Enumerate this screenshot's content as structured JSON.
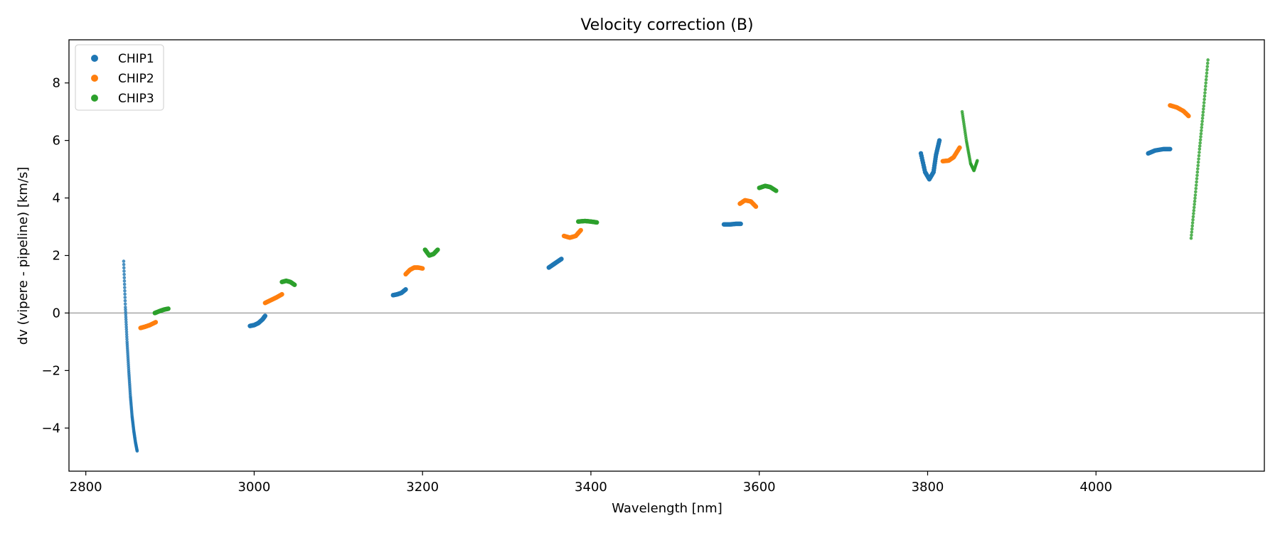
{
  "chart_data": {
    "type": "scatter",
    "title": "Velocity correction (B)",
    "xlabel": "Wavelength [nm]",
    "ylabel": "dv (vipere - pipeline) [km/s]",
    "xlim": [
      2780,
      4200
    ],
    "ylim": [
      -5.5,
      9.5
    ],
    "xticks": [
      2800,
      3000,
      3200,
      3400,
      3600,
      3800,
      4000
    ],
    "yticks": [
      -4,
      -2,
      0,
      2,
      4,
      6,
      8
    ],
    "xtick_labels": [
      "2800",
      "3000",
      "3200",
      "3400",
      "3600",
      "3800",
      "4000"
    ],
    "ytick_labels": [
      "−4",
      "−2",
      "0",
      "2",
      "4",
      "6",
      "8"
    ],
    "hline_y": 0,
    "legend": {
      "position": "top-left",
      "entries": [
        "CHIP1",
        "CHIP2",
        "CHIP3"
      ]
    },
    "series": [
      {
        "name": "CHIP1",
        "color": "#1f77b4",
        "segments": [
          {
            "x": [
              2845,
              2847,
              2849,
              2851,
              2853,
              2855,
              2857,
              2859,
              2861
            ],
            "y": [
              1.8,
              0.2,
              -1.0,
              -2.0,
              -2.9,
              -3.6,
              -4.1,
              -4.5,
              -4.8
            ]
          },
          {
            "x": [
              2995,
              3000,
              3005,
              3010,
              3013
            ],
            "y": [
              -0.45,
              -0.42,
              -0.35,
              -0.22,
              -0.1
            ]
          },
          {
            "x": [
              3165,
              3170,
              3175,
              3180
            ],
            "y": [
              0.62,
              0.65,
              0.7,
              0.82
            ]
          },
          {
            "x": [
              3350,
              3355,
              3360,
              3365
            ],
            "y": [
              1.58,
              1.68,
              1.78,
              1.88
            ]
          },
          {
            "x": [
              3558,
              3565,
              3572,
              3578
            ],
            "y": [
              3.08,
              3.08,
              3.1,
              3.1
            ]
          },
          {
            "x": [
              3792,
              3797,
              3802,
              3807,
              3810,
              3814
            ],
            "y": [
              5.55,
              4.9,
              4.65,
              4.9,
              5.5,
              6.0
            ]
          },
          {
            "x": [
              4062,
              4070,
              4080,
              4088
            ],
            "y": [
              5.55,
              5.65,
              5.7,
              5.7
            ]
          }
        ]
      },
      {
        "name": "CHIP2",
        "color": "#ff7f0e",
        "segments": [
          {
            "x": [
              2865,
              2870,
              2876,
              2883
            ],
            "y": [
              -0.52,
              -0.48,
              -0.42,
              -0.32
            ]
          },
          {
            "x": [
              3013,
              3020,
              3027,
              3033
            ],
            "y": [
              0.35,
              0.45,
              0.55,
              0.65
            ]
          },
          {
            "x": [
              3180,
              3185,
              3190,
              3195,
              3200
            ],
            "y": [
              1.35,
              1.5,
              1.58,
              1.58,
              1.55
            ]
          },
          {
            "x": [
              3368,
              3375,
              3382,
              3388
            ],
            "y": [
              2.68,
              2.62,
              2.68,
              2.88
            ]
          },
          {
            "x": [
              3577,
              3583,
              3590,
              3596
            ],
            "y": [
              3.8,
              3.92,
              3.88,
              3.7
            ]
          },
          {
            "x": [
              3818,
              3825,
              3831,
              3838
            ],
            "y": [
              5.28,
              5.3,
              5.42,
              5.75
            ]
          },
          {
            "x": [
              4088,
              4096,
              4104,
              4110
            ],
            "y": [
              7.22,
              7.15,
              7.02,
              6.85
            ]
          }
        ]
      },
      {
        "name": "CHIP3",
        "color": "#2ca02c",
        "segments": [
          {
            "x": [
              2882,
              2888,
              2893,
              2898
            ],
            "y": [
              0.0,
              0.07,
              0.12,
              0.15
            ]
          },
          {
            "x": [
              3033,
              3038,
              3043,
              3048
            ],
            "y": [
              1.08,
              1.12,
              1.08,
              0.98
            ]
          },
          {
            "x": [
              3203,
              3208,
              3213,
              3218
            ],
            "y": [
              2.2,
              2.0,
              2.05,
              2.2
            ]
          },
          {
            "x": [
              3385,
              3393,
              3400,
              3407
            ],
            "y": [
              3.18,
              3.2,
              3.18,
              3.15
            ]
          },
          {
            "x": [
              3600,
              3607,
              3613,
              3620
            ],
            "y": [
              4.35,
              4.42,
              4.38,
              4.25
            ]
          },
          {
            "x": [
              3841,
              3846,
              3851,
              3855,
              3859
            ],
            "y": [
              7.0,
              6.0,
              5.2,
              4.95,
              5.3
            ]
          },
          {
            "x": [
              4113,
              4118,
              4123,
              4128,
              4133
            ],
            "y": [
              2.6,
              4.1,
              5.7,
              7.2,
              8.8
            ]
          }
        ]
      }
    ]
  }
}
